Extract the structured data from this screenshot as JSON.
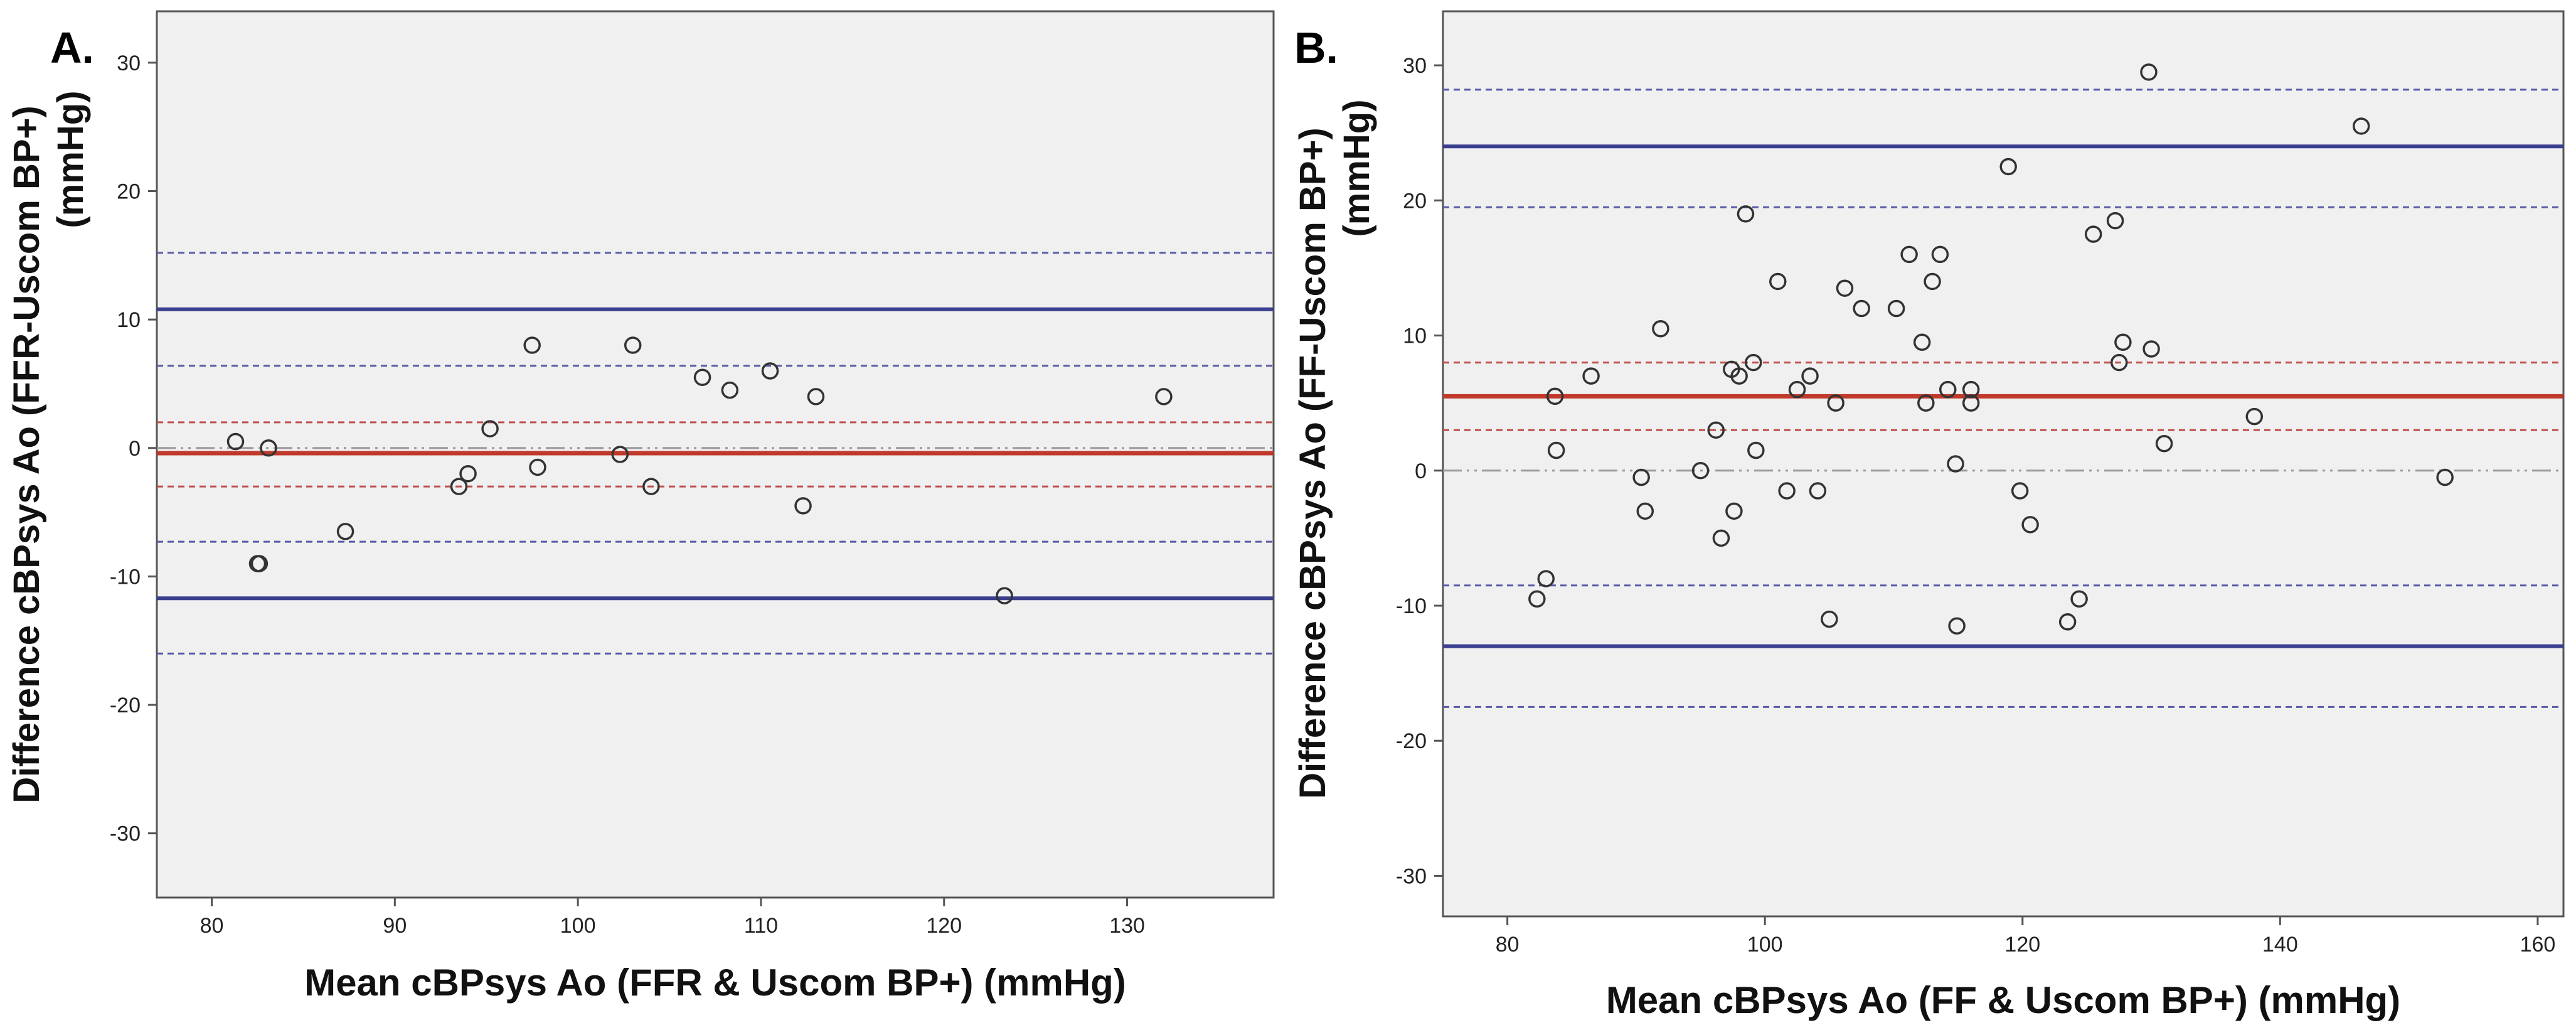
{
  "chart_data": [
    {
      "type": "scatter",
      "panel_label": "A.",
      "xlabel": "Mean cBPsys Ao (FFR & Uscom BP+) (mmHg)",
      "ylabel_line1": "Difference cBPsys Ao (FFR-Uscom BP+)",
      "ylabel_line2": "(mmHg)",
      "xlim": [
        77,
        138
      ],
      "ylim": [
        -35,
        34
      ],
      "xticks": [
        80,
        90,
        100,
        110,
        120,
        130
      ],
      "yticks": [
        -30,
        -20,
        -10,
        0,
        10,
        20,
        30
      ],
      "grid": false,
      "ref_lines": {
        "zero": 0,
        "mean": -0.4,
        "mean_ci": [
          -3.0,
          2.0
        ],
        "upper_loa": 10.8,
        "upper_loa_ci": [
          6.4,
          15.2
        ],
        "lower_loa": -11.7,
        "lower_loa_ci": [
          -7.3,
          -16.0
        ]
      },
      "points": [
        [
          81.3,
          0.5
        ],
        [
          82.5,
          -9.0
        ],
        [
          82.6,
          -9.0
        ],
        [
          83.1,
          0.0
        ],
        [
          87.3,
          -6.5
        ],
        [
          93.5,
          -3.0
        ],
        [
          94.0,
          -2.0
        ],
        [
          95.2,
          1.5
        ],
        [
          97.5,
          8.0
        ],
        [
          97.8,
          -1.5
        ],
        [
          102.3,
          -0.5
        ],
        [
          103.0,
          8.0
        ],
        [
          104.0,
          -3.0
        ],
        [
          106.8,
          5.5
        ],
        [
          108.3,
          4.5
        ],
        [
          110.5,
          6.0
        ],
        [
          112.3,
          -4.5
        ],
        [
          113.0,
          4.0
        ],
        [
          123.3,
          -11.5
        ],
        [
          132.0,
          4.0
        ]
      ]
    },
    {
      "type": "scatter",
      "panel_label": "B.",
      "xlabel": "Mean cBPsys Ao (FF & Uscom BP+) (mmHg)",
      "ylabel_line1": "Difference cBPsys Ao (FF-Uscom BP+)",
      "ylabel_line2": "(mmHg)",
      "xlim": [
        75,
        162
      ],
      "ylim": [
        -33,
        34
      ],
      "xticks": [
        80,
        100,
        120,
        140,
        160
      ],
      "yticks": [
        -30,
        -20,
        -10,
        0,
        10,
        20,
        30
      ],
      "grid": false,
      "ref_lines": {
        "zero": 0,
        "mean": 5.5,
        "mean_ci": [
          3.0,
          8.0
        ],
        "upper_loa": 24.0,
        "upper_loa_ci": [
          19.5,
          28.2
        ],
        "lower_loa": -13.0,
        "lower_loa_ci": [
          -8.5,
          -17.5
        ]
      },
      "points": [
        [
          82.3,
          -9.5
        ],
        [
          83.0,
          -8.0
        ],
        [
          83.7,
          5.5
        ],
        [
          83.8,
          1.5
        ],
        [
          86.5,
          7.0
        ],
        [
          90.4,
          -0.5
        ],
        [
          90.7,
          -3.0
        ],
        [
          91.9,
          10.5
        ],
        [
          95.0,
          0.0
        ],
        [
          96.2,
          3.0
        ],
        [
          96.6,
          -5.0
        ],
        [
          97.4,
          7.5
        ],
        [
          97.6,
          -3.0
        ],
        [
          98.0,
          7.0
        ],
        [
          98.5,
          19.0
        ],
        [
          99.1,
          8.0
        ],
        [
          99.3,
          1.5
        ],
        [
          101.0,
          14.0
        ],
        [
          101.7,
          -1.5
        ],
        [
          102.5,
          6.0
        ],
        [
          103.5,
          7.0
        ],
        [
          104.1,
          -1.5
        ],
        [
          105.0,
          -11.0
        ],
        [
          105.5,
          5.0
        ],
        [
          106.2,
          13.5
        ],
        [
          107.5,
          12.0
        ],
        [
          110.2,
          12.0
        ],
        [
          111.2,
          16.0
        ],
        [
          112.2,
          9.5
        ],
        [
          112.5,
          5.0
        ],
        [
          113.0,
          14.0
        ],
        [
          113.6,
          16.0
        ],
        [
          114.2,
          6.0
        ],
        [
          114.8,
          0.5
        ],
        [
          114.9,
          -11.5
        ],
        [
          116.0,
          6.0
        ],
        [
          116.0,
          5.0
        ],
        [
          118.9,
          22.5
        ],
        [
          119.8,
          -1.5
        ],
        [
          120.6,
          -4.0
        ],
        [
          123.5,
          -11.2
        ],
        [
          124.4,
          -9.5
        ],
        [
          125.5,
          17.5
        ],
        [
          127.2,
          18.5
        ],
        [
          127.5,
          8.0
        ],
        [
          127.8,
          9.5
        ],
        [
          130.0,
          9.0
        ],
        [
          129.8,
          29.5
        ],
        [
          131.0,
          2.0
        ],
        [
          138.0,
          4.0
        ],
        [
          146.3,
          25.5
        ],
        [
          152.8,
          -0.5
        ]
      ]
    }
  ]
}
